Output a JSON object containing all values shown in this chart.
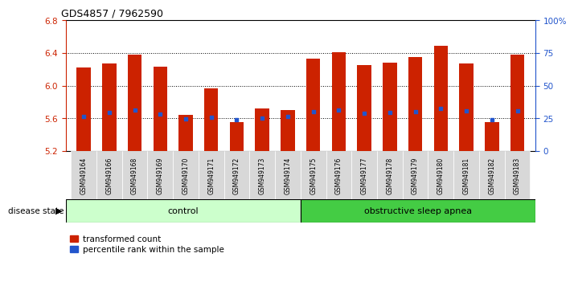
{
  "title": "GDS4857 / 7962590",
  "samples": [
    "GSM949164",
    "GSM949166",
    "GSM949168",
    "GSM949169",
    "GSM949170",
    "GSM949171",
    "GSM949172",
    "GSM949173",
    "GSM949174",
    "GSM949175",
    "GSM949176",
    "GSM949177",
    "GSM949178",
    "GSM949179",
    "GSM949180",
    "GSM949181",
    "GSM949182",
    "GSM949183"
  ],
  "bar_heights": [
    6.22,
    6.27,
    6.38,
    6.23,
    5.64,
    5.97,
    5.56,
    5.72,
    5.7,
    6.33,
    6.41,
    6.25,
    6.28,
    6.35,
    6.49,
    6.27,
    5.56,
    6.38
  ],
  "blue_dot_y": [
    5.625,
    5.675,
    5.7,
    5.655,
    5.595,
    5.615,
    5.585,
    5.6,
    5.625,
    5.68,
    5.7,
    5.665,
    5.67,
    5.68,
    5.725,
    5.69,
    5.585,
    5.69
  ],
  "ymin": 5.2,
  "ymax": 6.8,
  "yticks": [
    5.2,
    5.6,
    6.0,
    6.4,
    6.8
  ],
  "bar_color": "#cc2200",
  "dot_color": "#2255cc",
  "bar_width": 0.55,
  "control_samples": 9,
  "control_label": "control",
  "disease_label": "obstructive sleep apnea",
  "control_color": "#ccffcc",
  "disease_color": "#44cc44",
  "legend_bar_label": "transformed count",
  "legend_dot_label": "percentile rank within the sample",
  "left_axis_color": "#cc2200",
  "right_axis_color": "#2255cc",
  "right_yticks": [
    0,
    25,
    50,
    75,
    100
  ],
  "right_yticklabels": [
    "0",
    "25",
    "50",
    "75",
    "100%"
  ],
  "bg_color": "#ffffff"
}
